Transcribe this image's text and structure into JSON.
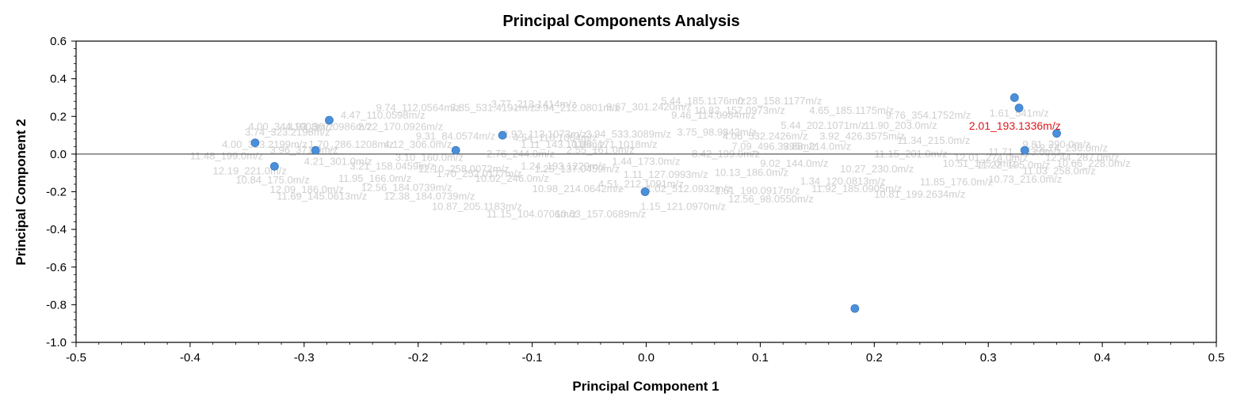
{
  "chart_data": {
    "type": "scatter",
    "title": "Principal Components Analysis",
    "xlabel": "Principal Component 1",
    "ylabel": "Principal Component 2",
    "xlim": [
      -0.5,
      0.5
    ],
    "ylim": [
      -1.0,
      0.6
    ],
    "xticks": [
      "-0.5",
      "-0.4",
      "-0.3",
      "-0.2",
      "-0.1",
      "0.0",
      "0.1",
      "0.2",
      "0.3",
      "0.4",
      "0.5"
    ],
    "yticks": [
      "0.6",
      "0.4",
      "0.2",
      "0.0",
      "-0.2",
      "-0.4",
      "-0.6",
      "-0.8",
      "-1.0"
    ],
    "grid": false,
    "point_color": "#4a8fd9",
    "zero_line": true,
    "points": [
      {
        "x": -0.343,
        "y": 0.06
      },
      {
        "x": -0.326,
        "y": -0.065
      },
      {
        "x": -0.29,
        "y": 0.02
      },
      {
        "x": -0.278,
        "y": 0.18
      },
      {
        "x": -0.167,
        "y": 0.02
      },
      {
        "x": -0.126,
        "y": 0.1
      },
      {
        "x": -0.001,
        "y": -0.2
      },
      {
        "x": 0.183,
        "y": -0.82
      },
      {
        "x": 0.323,
        "y": 0.3
      },
      {
        "x": 0.327,
        "y": 0.245
      },
      {
        "x": 0.332,
        "y": 0.02
      },
      {
        "x": 0.36,
        "y": 0.11
      }
    ],
    "highlight_label": {
      "text": "2.01_193.1336m/z",
      "x": 0.283,
      "y": 0.15,
      "color": "#e0161b"
    },
    "variable_labels_color": "#cfcfcf",
    "variable_labels": [
      {
        "text": "5.44_185.1176m/z",
        "x": 0.013,
        "y": 0.28
      },
      {
        "text": "0.23_158.1177m/z",
        "x": 0.08,
        "y": 0.28
      },
      {
        "text": "3.77_213.1414m/z",
        "x": -0.136,
        "y": 0.265
      },
      {
        "text": "9.67_301.2420m/z",
        "x": -0.035,
        "y": 0.25
      },
      {
        "text": "9.74_112.0564m/z",
        "x": -0.237,
        "y": 0.245
      },
      {
        "text": "3.85_531.4191m/z",
        "x": -0.172,
        "y": 0.245
      },
      {
        "text": "3.94_212.0801m/z",
        "x": -0.098,
        "y": 0.245
      },
      {
        "text": "4.47_110.0598m/z",
        "x": -0.268,
        "y": 0.205
      },
      {
        "text": "10.82_157.0973m/z",
        "x": 0.042,
        "y": 0.23
      },
      {
        "text": "4.65_185.1175m/z",
        "x": 0.143,
        "y": 0.23
      },
      {
        "text": "9.46_114.0984m/z",
        "x": 0.022,
        "y": 0.205
      },
      {
        "text": "9.76_354.1752m/z",
        "x": 0.21,
        "y": 0.205
      },
      {
        "text": "1.61_541m/z",
        "x": 0.301,
        "y": 0.215
      },
      {
        "text": "4.00_344.1908m/z",
        "x": -0.349,
        "y": 0.145
      },
      {
        "text": "3.93_307.0986m/z",
        "x": -0.315,
        "y": 0.145
      },
      {
        "text": "2.22_170.0926m/z",
        "x": -0.253,
        "y": 0.145
      },
      {
        "text": "5.44_202.1071m/z",
        "x": 0.118,
        "y": 0.15
      },
      {
        "text": "3.74_323.2198m/z",
        "x": -0.352,
        "y": 0.115
      },
      {
        "text": "11.90_203.0m/z",
        "x": 0.191,
        "y": 0.15
      },
      {
        "text": "2.92_113.1073m/z",
        "x": -0.126,
        "y": 0.105
      },
      {
        "text": "3.94_533.3089m/z",
        "x": -0.053,
        "y": 0.105
      },
      {
        "text": "3.75_98.9842m/z",
        "x": 0.027,
        "y": 0.115
      },
      {
        "text": "9.31_84.0574m/z",
        "x": -0.202,
        "y": 0.095
      },
      {
        "text": "4.54_110.1064m/z",
        "x": -0.117,
        "y": 0.085
      },
      {
        "text": "4.06_532.2426m/z",
        "x": 0.067,
        "y": 0.095
      },
      {
        "text": "3.92_426.3575m/z",
        "x": 0.152,
        "y": 0.095
      },
      {
        "text": "7.09_496.3395m/z",
        "x": 0.075,
        "y": 0.04
      },
      {
        "text": "4.00_323.2199m/z",
        "x": -0.372,
        "y": 0.05
      },
      {
        "text": "1.70_286.1208m/z",
        "x": -0.296,
        "y": 0.05
      },
      {
        "text": "1.11_143.1018m/z",
        "x": -0.11,
        "y": 0.05
      },
      {
        "text": "1.86_171.1018m/z",
        "x": -0.065,
        "y": 0.05
      },
      {
        "text": "12.10_258.0072m/z",
        "x": -0.2,
        "y": -0.08
      },
      {
        "text": "1.25_137.0459m/z",
        "x": -0.098,
        "y": -0.08
      },
      {
        "text": "3.21_158.0459m/z",
        "x": -0.26,
        "y": -0.065
      },
      {
        "text": "1.70_252.0177m/z",
        "x": -0.184,
        "y": -0.105
      },
      {
        "text": "1.24_193.1229m/z",
        "x": -0.11,
        "y": -0.065
      },
      {
        "text": "1.11_127.0993m/z",
        "x": -0.02,
        "y": -0.11
      },
      {
        "text": "4.51_212.1091m/z",
        "x": -0.042,
        "y": -0.16
      },
      {
        "text": "10.98_214.0642m/z",
        "x": -0.1,
        "y": -0.185
      },
      {
        "text": "1.02_512.0932m/z",
        "x": 0.0,
        "y": -0.185
      },
      {
        "text": "1.61_190.0917m/z",
        "x": 0.06,
        "y": -0.195
      },
      {
        "text": "11.92_185.0905m/z",
        "x": 0.145,
        "y": -0.185
      },
      {
        "text": "11.69_145.0613m/z",
        "x": -0.324,
        "y": -0.225
      },
      {
        "text": "12.38_184.0739m/z",
        "x": -0.23,
        "y": -0.225
      },
      {
        "text": "12.56_98.0550m/z",
        "x": 0.072,
        "y": -0.24
      },
      {
        "text": "10.87_205.1183m/z",
        "x": -0.188,
        "y": -0.28
      },
      {
        "text": "11.15_104.0706m/z",
        "x": -0.14,
        "y": -0.32
      },
      {
        "text": "10.63_157.0689m/z",
        "x": -0.08,
        "y": -0.32
      },
      {
        "text": "1.15_121.0970m/z",
        "x": -0.005,
        "y": -0.28
      },
      {
        "text": "12.56_184.0739m/z",
        "x": -0.25,
        "y": -0.18
      },
      {
        "text": "10.84_175.0m/z",
        "x": -0.36,
        "y": -0.14
      },
      {
        "text": "12.09_186.0m/z",
        "x": -0.33,
        "y": -0.19
      },
      {
        "text": "1.34_120.0813m/z",
        "x": 0.135,
        "y": -0.145
      },
      {
        "text": "11.85_176.0m/z",
        "x": 0.24,
        "y": -0.15
      },
      {
        "text": "10.81_199.2634m/z",
        "x": 0.2,
        "y": -0.215
      },
      {
        "text": "10.73_216.0m/z",
        "x": 0.3,
        "y": -0.135
      },
      {
        "text": "11.03_258.0m/z",
        "x": 0.33,
        "y": -0.09
      },
      {
        "text": "10.51_175.0m/z",
        "x": 0.26,
        "y": -0.05
      },
      {
        "text": "11.71_163.0m/z",
        "x": 0.3,
        "y": 0.01
      },
      {
        "text": "12.44_287.0m/z",
        "x": 0.35,
        "y": -0.02
      },
      {
        "text": "9.81_290.0m/z",
        "x": 0.33,
        "y": 0.05
      },
      {
        "text": "11.15_201.0m/z",
        "x": 0.2,
        "y": 0.0
      },
      {
        "text": "9.02_144.0m/z",
        "x": 0.1,
        "y": -0.05
      },
      {
        "text": "8.42_199.0m/z",
        "x": 0.04,
        "y": 0.0
      },
      {
        "text": "1.44_173.0m/z",
        "x": -0.03,
        "y": -0.04
      },
      {
        "text": "2.76_244.0m/z",
        "x": -0.14,
        "y": 0.0
      },
      {
        "text": "3.10_160.0m/z",
        "x": -0.22,
        "y": -0.02
      },
      {
        "text": "4.21_301.0m/z",
        "x": -0.3,
        "y": -0.04
      },
      {
        "text": "11.48_199.0m/z",
        "x": -0.4,
        "y": -0.01
      },
      {
        "text": "12.19_221.0m/z",
        "x": -0.38,
        "y": -0.09
      },
      {
        "text": "11.95_166.0m/z",
        "x": -0.27,
        "y": -0.13
      },
      {
        "text": "10.02_246.0m/z",
        "x": -0.15,
        "y": -0.13
      },
      {
        "text": "10.13_186.0m/z",
        "x": 0.06,
        "y": -0.1
      },
      {
        "text": "10.27_230.0m/z",
        "x": 0.17,
        "y": -0.08
      },
      {
        "text": "12.01_274.0m/z",
        "x": 0.27,
        "y": -0.02
      },
      {
        "text": "11.34_215.0m/z",
        "x": 0.22,
        "y": 0.07
      },
      {
        "text": "9.88_214.0m/z",
        "x": 0.12,
        "y": 0.04
      },
      {
        "text": "2.55_161.0m/z",
        "x": -0.07,
        "y": 0.02
      },
      {
        "text": "4.12_306.0m/z",
        "x": -0.23,
        "y": 0.05
      },
      {
        "text": "3.96_371.0m/z",
        "x": -0.33,
        "y": 0.02
      },
      {
        "text": "12.74_236.0m/z",
        "x": 0.34,
        "y": 0.03
      },
      {
        "text": "11.22_195.0m/z",
        "x": 0.29,
        "y": -0.06
      },
      {
        "text": "10.66_228.0m/z",
        "x": 0.36,
        "y": -0.05
      }
    ]
  }
}
